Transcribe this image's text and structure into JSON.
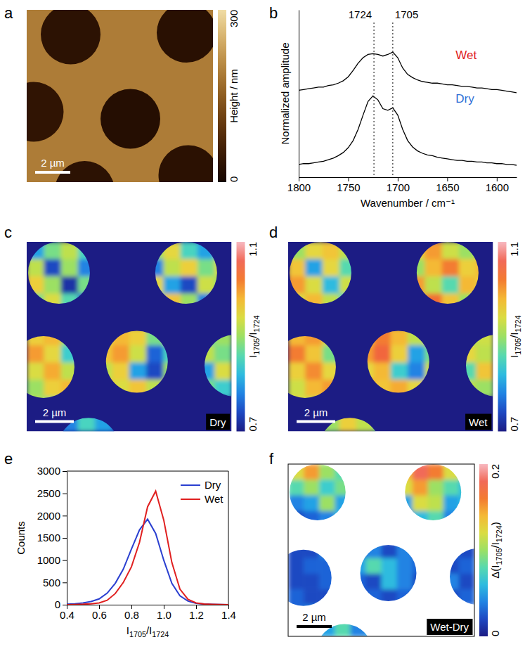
{
  "chart_data": [
    {
      "type": "height_map",
      "panel": "a",
      "xlim": [
        0,
        10.6
      ],
      "ylim": [
        0,
        9.8
      ],
      "tick_labels": false,
      "background": 190,
      "domains": [
        {
          "cx": 2.5,
          "cy": 1.4,
          "r": 1.7,
          "value": 30
        },
        {
          "cx": 9.1,
          "cy": 1.3,
          "r": 1.7,
          "value": 25
        },
        {
          "cx": 0.4,
          "cy": 5.8,
          "r": 1.7,
          "value": 35
        },
        {
          "cx": 5.9,
          "cy": 6.2,
          "r": 1.7,
          "value": 20
        },
        {
          "cx": 3.3,
          "cy": 10.3,
          "r": 1.7,
          "value": 30
        },
        {
          "cx": 9.2,
          "cy": 9.4,
          "r": 1.7,
          "value": 28
        }
      ],
      "colorbar": {
        "title": "Height / nm",
        "range": [
          0,
          300
        ],
        "ticks": [
          0,
          300
        ]
      },
      "scale_bar": {
        "value": 2,
        "label": "2 µm"
      }
    },
    {
      "type": "line",
      "panel": "b",
      "xlabel": "Wavenumber / cm⁻¹",
      "ylabel": "Normalized amplitude",
      "tick_labels": "x",
      "x": [
        1800,
        1795,
        1790,
        1785,
        1780,
        1775,
        1770,
        1765,
        1760,
        1755,
        1750,
        1745,
        1740,
        1735,
        1730,
        1725,
        1720,
        1715,
        1710,
        1705,
        1700,
        1695,
        1690,
        1685,
        1680,
        1675,
        1670,
        1665,
        1660,
        1655,
        1650,
        1645,
        1640,
        1635,
        1630,
        1625,
        1620,
        1615,
        1610,
        1605,
        1600,
        1595,
        1590,
        1585,
        1580
      ],
      "xlim": [
        1800,
        1580
      ],
      "xticks": [
        1800,
        1750,
        1700,
        1650,
        1600
      ],
      "ylim": [
        0,
        2.1
      ],
      "series": [
        {
          "name": "Wet",
          "color": "#e0201c",
          "values": [
            1.09,
            1.1,
            1.11,
            1.12,
            1.13,
            1.13,
            1.15,
            1.16,
            1.18,
            1.21,
            1.26,
            1.34,
            1.43,
            1.5,
            1.54,
            1.55,
            1.54,
            1.52,
            1.54,
            1.57,
            1.5,
            1.37,
            1.29,
            1.25,
            1.22,
            1.2,
            1.19,
            1.18,
            1.18,
            1.17,
            1.16,
            1.16,
            1.15,
            1.14,
            1.14,
            1.13,
            1.12,
            1.12,
            1.11,
            1.1,
            1.1,
            1.09,
            1.08,
            1.07,
            1.06
          ]
        },
        {
          "name": "Dry",
          "color": "#2f6fd6",
          "values": [
            0.16,
            0.17,
            0.17,
            0.18,
            0.19,
            0.2,
            0.22,
            0.24,
            0.27,
            0.31,
            0.37,
            0.46,
            0.6,
            0.78,
            0.95,
            1.02,
            0.97,
            0.86,
            0.84,
            0.87,
            0.78,
            0.6,
            0.46,
            0.38,
            0.33,
            0.3,
            0.28,
            0.27,
            0.25,
            0.24,
            0.23,
            0.22,
            0.21,
            0.21,
            0.2,
            0.2,
            0.19,
            0.19,
            0.18,
            0.18,
            0.17,
            0.17,
            0.16,
            0.16,
            0.15
          ]
        }
      ],
      "vlines": [
        1724,
        1705
      ]
    },
    {
      "type": "heatmap",
      "panel": "c",
      "xlim": [
        0,
        10.6
      ],
      "ylim": [
        0,
        9.8
      ],
      "tick_labels": false,
      "tag": "Dry",
      "domains": [
        {
          "cx": 1.67,
          "cy": 1.6,
          "r": 1.6
        },
        {
          "cx": 8.25,
          "cy": 1.6,
          "r": 1.6
        },
        {
          "cx": 0.87,
          "cy": 6.47,
          "r": 1.6
        },
        {
          "cx": 5.7,
          "cy": 6.2,
          "r": 1.6
        },
        {
          "cx": 10.8,
          "cy": 6.4,
          "r": 1.6
        },
        {
          "cx": 3.2,
          "cy": 10.7,
          "r": 1.6
        }
      ],
      "cells": [
        [
          0.8,
          0.88,
          0.92,
          0.85,
          null,
          null,
          null,
          0.9,
          0.95,
          0.85,
          0.8,
          0.9
        ],
        [
          0.92,
          0.74,
          0.9,
          0.78,
          null,
          null,
          null,
          0.78,
          0.92,
          0.96,
          0.88,
          0.94
        ],
        [
          0.96,
          0.9,
          0.72,
          0.88,
          null,
          null,
          null,
          0.95,
          0.8,
          0.74,
          0.93,
          0.9
        ],
        [
          0.88,
          0.94,
          0.86,
          0.76,
          null,
          null,
          null,
          0.86,
          0.97,
          0.9,
          0.78,
          0.85
        ],
        [
          null,
          null,
          null,
          null,
          null,
          null,
          null,
          null,
          null,
          null,
          null,
          null
        ],
        [
          0.96,
          0.98,
          0.9,
          null,
          0.94,
          0.98,
          0.96,
          0.88,
          0.92,
          null,
          0.86,
          0.9
        ],
        [
          1.0,
          0.95,
          0.84,
          null,
          0.97,
          1.0,
          0.93,
          0.76,
          0.85,
          null,
          0.92,
          0.88
        ],
        [
          0.94,
          0.99,
          0.92,
          null,
          0.92,
          0.96,
          0.8,
          0.74,
          0.9,
          null,
          0.8,
          0.94
        ],
        [
          0.9,
          0.96,
          0.98,
          null,
          0.98,
          0.94,
          0.97,
          0.92,
          0.95,
          null,
          0.88,
          0.84
        ],
        [
          0.92,
          0.88,
          0.95,
          null,
          null,
          null,
          null,
          null,
          null,
          null,
          null,
          null
        ],
        [
          null,
          0.82,
          0.78,
          0.85,
          0.8,
          0.76,
          null,
          null,
          null,
          null,
          null,
          null
        ]
      ],
      "colorbar": {
        "title": "I1705/I1724",
        "range": [
          0.7,
          1.1
        ],
        "ticks": [
          0.7,
          1.1
        ]
      },
      "scale_bar": {
        "value": 2,
        "label": "2 µm"
      }
    },
    {
      "type": "heatmap",
      "panel": "d",
      "xlim": [
        0,
        10.6
      ],
      "ylim": [
        0,
        9.8
      ],
      "tick_labels": false,
      "tag": "Wet",
      "domains": [
        {
          "cx": 1.67,
          "cy": 1.6,
          "r": 1.6
        },
        {
          "cx": 8.25,
          "cy": 1.6,
          "r": 1.6
        },
        {
          "cx": 0.87,
          "cy": 6.47,
          "r": 1.6
        },
        {
          "cx": 5.7,
          "cy": 6.2,
          "r": 1.6
        },
        {
          "cx": 10.8,
          "cy": 6.4,
          "r": 1.6
        },
        {
          "cx": 3.2,
          "cy": 10.7,
          "r": 1.6
        }
      ],
      "cells": [
        [
          0.9,
          0.95,
          0.97,
          0.92,
          null,
          null,
          null,
          0.96,
          1.0,
          0.93,
          0.9,
          0.95
        ],
        [
          0.97,
          0.8,
          0.95,
          0.86,
          null,
          null,
          null,
          0.9,
          0.98,
          1.02,
          0.96,
          0.98
        ],
        [
          1.0,
          0.94,
          0.82,
          0.93,
          null,
          null,
          null,
          1.0,
          0.92,
          0.86,
          0.98,
          0.96
        ],
        [
          0.94,
          0.98,
          0.92,
          0.84,
          null,
          null,
          null,
          0.94,
          1.03,
          0.97,
          0.9,
          0.92
        ],
        [
          null,
          null,
          null,
          null,
          null,
          null,
          null,
          null,
          null,
          null,
          null,
          null
        ],
        [
          0.98,
          1.0,
          0.94,
          null,
          0.97,
          1.02,
          0.98,
          0.92,
          0.95,
          null,
          0.9,
          0.93
        ],
        [
          1.02,
          0.97,
          0.88,
          null,
          1.0,
          1.04,
          0.96,
          0.8,
          0.88,
          null,
          0.95,
          0.92
        ],
        [
          0.96,
          1.01,
          0.95,
          null,
          0.95,
          0.98,
          0.84,
          0.78,
          0.93,
          null,
          0.86,
          0.97
        ],
        [
          0.93,
          0.98,
          1.0,
          null,
          1.0,
          0.97,
          0.99,
          0.95,
          0.97,
          null,
          0.92,
          0.9
        ],
        [
          0.95,
          0.92,
          0.97,
          null,
          null,
          null,
          null,
          null,
          null,
          null,
          null,
          null
        ],
        [
          null,
          0.94,
          0.9,
          0.96,
          0.92,
          0.88,
          null,
          null,
          null,
          null,
          null,
          null
        ]
      ],
      "colorbar": {
        "title": "I1705/I1724",
        "range": [
          0.7,
          1.1
        ],
        "ticks": [
          0.7,
          1.1
        ]
      },
      "scale_bar": {
        "value": 2,
        "label": "2 µm"
      }
    },
    {
      "type": "line",
      "panel": "e",
      "xlabel": "I1705/I1724",
      "ylabel": "Counts",
      "legend": "upper right",
      "x": [
        0.4,
        0.45,
        0.5,
        0.55,
        0.6,
        0.65,
        0.7,
        0.75,
        0.8,
        0.85,
        0.9,
        0.95,
        1,
        1.05,
        1.1,
        1.15,
        1.2,
        1.25,
        1.3,
        1.35,
        1.4
      ],
      "xlim": [
        0.4,
        1.4
      ],
      "xticks": [
        0.4,
        0.6,
        0.8,
        {
          "value": 1,
          "label": "1.0"
        },
        1.2,
        1.4
      ],
      "ylim": [
        0,
        3000
      ],
      "yticks": [
        0,
        500,
        1000,
        1500,
        2000,
        2500,
        3000
      ],
      "series": [
        {
          "name": "Dry",
          "color": "#2a3fd0",
          "values": [
            10,
            20,
            40,
            70,
            130,
            260,
            480,
            800,
            1250,
            1680,
            1920,
            1600,
            1000,
            480,
            200,
            80,
            30,
            15,
            8,
            5,
            0
          ]
        },
        {
          "name": "Wet",
          "color": "#e02020",
          "values": [
            0,
            5,
            10,
            20,
            40,
            100,
            250,
            500,
            850,
            1400,
            2200,
            2550,
            1900,
            950,
            350,
            120,
            40,
            15,
            8,
            4,
            0
          ]
        }
      ]
    },
    {
      "type": "heatmap",
      "panel": "f",
      "xlim": [
        0,
        10.6
      ],
      "ylim": [
        0,
        9.8
      ],
      "tick_labels": false,
      "tag": "Wet-Dry",
      "domains": [
        {
          "cx": 1.67,
          "cy": 1.6,
          "r": 1.6
        },
        {
          "cx": 8.25,
          "cy": 1.6,
          "r": 1.6
        },
        {
          "cx": 0.87,
          "cy": 6.47,
          "r": 1.6
        },
        {
          "cx": 5.7,
          "cy": 6.2,
          "r": 1.6
        },
        {
          "cx": 10.8,
          "cy": 6.4,
          "r": 1.6
        },
        {
          "cx": 3.2,
          "cy": 10.7,
          "r": 1.6
        }
      ],
      "cells": [
        [
          0.12,
          0.15,
          0.1,
          0.08,
          null,
          null,
          null,
          0.14,
          0.18,
          0.16,
          0.12,
          0.1
        ],
        [
          0.08,
          0.1,
          0.07,
          0.09,
          null,
          null,
          null,
          0.12,
          0.15,
          0.1,
          0.08,
          0.06
        ],
        [
          0.04,
          0.05,
          0.1,
          0.05,
          null,
          null,
          null,
          0.05,
          0.12,
          0.11,
          0.05,
          0.06
        ],
        [
          0.02,
          0.03,
          0.04,
          0.06,
          null,
          null,
          null,
          0.03,
          0.06,
          0.08,
          0.04,
          0.03
        ],
        [
          null,
          null,
          null,
          null,
          null,
          null,
          null,
          null,
          null,
          null,
          null,
          null
        ],
        [
          0.02,
          0.02,
          0.04,
          null,
          0.03,
          0.04,
          0.02,
          0.04,
          0.03,
          null,
          0.03,
          0.02
        ],
        [
          0.02,
          0.03,
          0.03,
          null,
          0.05,
          0.08,
          0.06,
          0.04,
          0.03,
          null,
          0.02,
          0.03
        ],
        [
          0.02,
          0.02,
          0.03,
          null,
          0.03,
          0.02,
          0.06,
          0.04,
          0.02,
          null,
          0.04,
          0.02
        ],
        [
          0.03,
          0.02,
          0.02,
          null,
          0.02,
          0.03,
          0.02,
          0.03,
          0.02,
          null,
          0.02,
          0.03
        ],
        [
          0.03,
          0.04,
          0.02,
          null,
          null,
          null,
          null,
          null,
          null,
          null,
          null,
          null
        ],
        [
          null,
          0.06,
          0.05,
          0.08,
          0.04,
          0.05,
          null,
          null,
          null,
          null,
          null,
          null
        ]
      ],
      "colorbar": {
        "title": "Δ(I1705/I1724)",
        "range": [
          0,
          0.2
        ],
        "ticks": [
          0,
          0.2
        ]
      },
      "scale_bar": {
        "value": 2,
        "label": "2 µm"
      }
    }
  ]
}
